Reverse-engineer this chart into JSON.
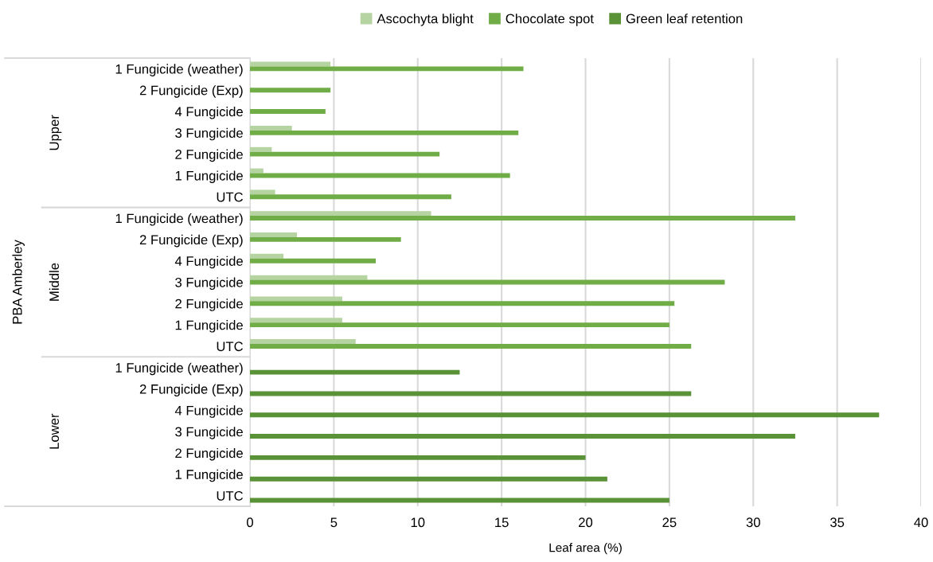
{
  "chart_data": {
    "type": "bar",
    "orientation": "horizontal",
    "xlabel": "Leaf area (%)",
    "categories": [
      "1 Fungicide (weather)",
      "2 Fungicide (Exp)",
      "4 Fungicide",
      "3 Fungicide",
      "2 Fungicide",
      "1 Fungicide",
      "UTC",
      "1 Fungicide (weather)",
      "2 Fungicide (Exp)",
      "4 Fungicide",
      "3 Fungicide",
      "2 Fungicide",
      "1 Fungicide",
      "UTC",
      "1 Fungicide (weather)",
      "2 Fungicide (Exp)",
      "4 Fungicide",
      "3 Fungicide",
      "2 Fungicide",
      "1 Fungicide",
      "UTC"
    ],
    "series": [
      {
        "name": "Ascochyta blight",
        "color": "#b6d3a2",
        "values": [
          4.8,
          null,
          null,
          2.5,
          1.3,
          0.8,
          1.5,
          10.8,
          2.8,
          2.0,
          7.0,
          5.5,
          5.5,
          6.3,
          null,
          null,
          null,
          null,
          null,
          null,
          null
        ]
      },
      {
        "name": "Chocolate spot",
        "color": "#70ad47",
        "values": [
          16.3,
          4.8,
          4.5,
          16.0,
          11.3,
          15.5,
          12.0,
          32.5,
          9.0,
          7.5,
          28.3,
          25.3,
          25.0,
          26.3,
          null,
          null,
          null,
          null,
          null,
          null,
          null
        ]
      },
      {
        "name": "Green leaf retention",
        "color": "#5a9237",
        "values": [
          null,
          null,
          null,
          null,
          null,
          null,
          null,
          null,
          null,
          null,
          null,
          null,
          null,
          null,
          12.5,
          26.3,
          37.5,
          32.5,
          20.0,
          21.3,
          25.0
        ]
      }
    ],
    "xlim": [
      0,
      40
    ],
    "xticks": [
      0,
      5,
      10,
      15,
      20,
      25,
      30,
      35,
      40
    ],
    "grid": "x",
    "legend": "top",
    "annotations": [
      "PBA Amberley",
      "Upper",
      "Middle",
      "Lower"
    ]
  }
}
